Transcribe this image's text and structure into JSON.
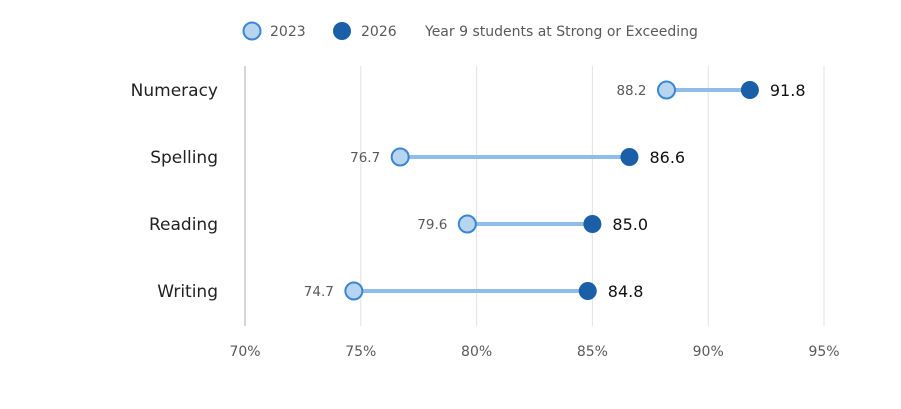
{
  "chart_data": {
    "type": "dumbbell",
    "title": "Year 9 students at Strong or Exceeding",
    "categories": [
      "Numeracy",
      "Spelling",
      "Reading",
      "Writing"
    ],
    "series": [
      {
        "name": "2023",
        "values": [
          88.2,
          76.7,
          79.6,
          74.7
        ],
        "value_labels": [
          "88.2",
          "76.7",
          "79.6",
          "74.7"
        ]
      },
      {
        "name": "2026",
        "values": [
          91.8,
          86.6,
          85.0,
          84.8
        ],
        "value_labels": [
          "91.8",
          "86.6",
          "85.0",
          "84.8"
        ]
      }
    ],
    "xlim": [
      70,
      95
    ],
    "ticks": [
      "70%",
      "75%",
      "80%",
      "85%",
      "90%",
      "95%"
    ],
    "tick_values": [
      70,
      75,
      80,
      85,
      90,
      95
    ],
    "grid": true,
    "legend_position": "top"
  },
  "colors": {
    "start_fill": "#b8d5f0",
    "start_stroke": "#3a86d0",
    "end_fill": "#1a5fa8",
    "connector": "#8fbce8",
    "grid": "#e2e2e2",
    "axis": "#c8c8c8"
  }
}
